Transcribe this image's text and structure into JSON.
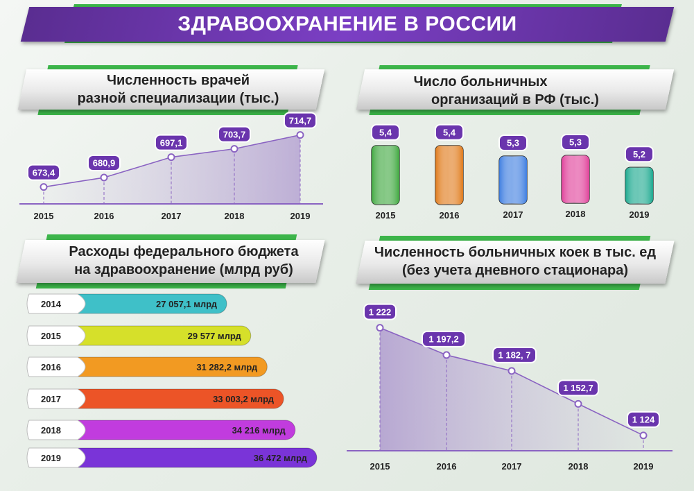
{
  "title": "ЗДРАВООХРАНЕНИЕ В РОССИИ",
  "colors": {
    "purple": "#6a35ad",
    "green": "#3cb54a",
    "bars_hospitals": [
      "#3fa83f",
      "#e07a1a",
      "#3d7de0",
      "#e0409a",
      "#1aa88e"
    ],
    "bars_budget": [
      "#3fc0c8",
      "#d6e02a",
      "#f29a22",
      "#ec5427",
      "#c13cde",
      "#7a34d8"
    ]
  },
  "chart_data": [
    {
      "id": "doctors",
      "type": "line",
      "title": [
        "Численность врачей",
        "разной специализации (тыс.)"
      ],
      "x": [
        "2015",
        "2016",
        "2017",
        "2018",
        "2019"
      ],
      "values": [
        673.4,
        680.9,
        697.1,
        703.7,
        714.7
      ],
      "labels": [
        "673,4",
        "680,9",
        "697,1",
        "703,7",
        "714,7"
      ]
    },
    {
      "id": "hospitals",
      "type": "bar",
      "title": [
        "Число больничных",
        "организаций в РФ (тыс.)"
      ],
      "categories": [
        "2015",
        "2016",
        "2017",
        "2018",
        "2019"
      ],
      "values": [
        5.4,
        5.4,
        5.3,
        5.3,
        5.2
      ],
      "labels": [
        "5,4",
        "5,4",
        "5,3",
        "5,3",
        "5,2"
      ]
    },
    {
      "id": "budget",
      "type": "bar",
      "orientation": "horizontal",
      "title": [
        "Расходы федерального бюджета",
        "на здравоохранение (млрд руб)"
      ],
      "categories": [
        "2014",
        "2015",
        "2016",
        "2017",
        "2018",
        "2019"
      ],
      "values": [
        27057.1,
        29577,
        31282.2,
        33003.2,
        34216,
        36472
      ],
      "labels": [
        "27 057,1 млрд",
        "29 577 млрд",
        "31 282,2 млрд",
        "33 003,2 млрд",
        "34 216 млрд",
        "36 472 млрд"
      ]
    },
    {
      "id": "beds",
      "type": "line",
      "title": [
        "Численность больничных коек в тыс. ед",
        "(без учета дневного стационара)"
      ],
      "x": [
        "2015",
        "2016",
        "2017",
        "2018",
        "2019"
      ],
      "values": [
        1222,
        1197.2,
        1182.7,
        1152.7,
        1124
      ],
      "labels": [
        "1 222",
        "1 197,2",
        "1 182, 7",
        "1 152,7",
        "1 124"
      ]
    }
  ]
}
